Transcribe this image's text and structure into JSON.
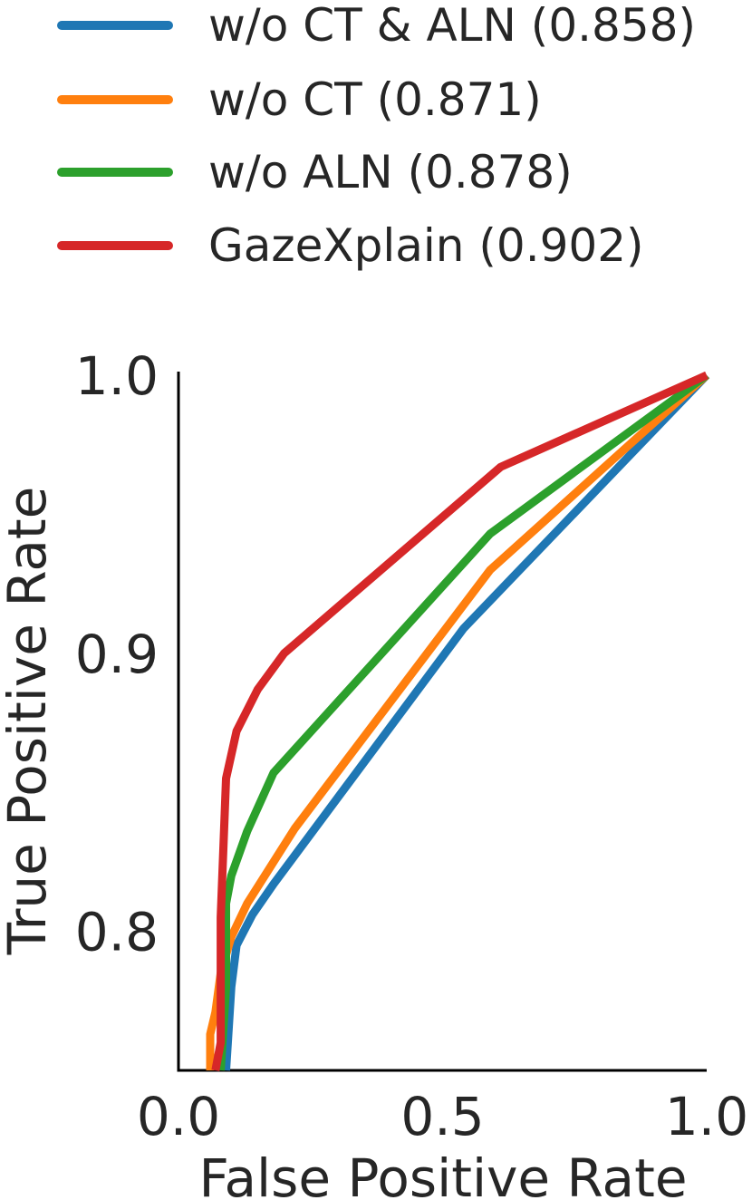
{
  "chart_data": {
    "type": "line",
    "title": "",
    "xlabel": "False Positive Rate",
    "ylabel": "True Positive Rate",
    "xlim": [
      0.0,
      1.0
    ],
    "ylim": [
      0.75,
      1.0
    ],
    "xticks": [
      "0.0",
      "0.5",
      "1.0"
    ],
    "yticks": [
      "0.8",
      "0.9",
      "1.0"
    ],
    "grid": false,
    "legend_position": "top",
    "series": [
      {
        "name": "w/o CT & ALN (0.858)",
        "color": "#1f77b4",
        "x": [
          0.09,
          0.1,
          0.11,
          0.14,
          0.18,
          0.54,
          1.0
        ],
        "y": [
          0.75,
          0.78,
          0.795,
          0.806,
          0.817,
          0.909,
          1.0
        ]
      },
      {
        "name": "w/o CT (0.871)",
        "color": "#ff7f0e",
        "x": [
          0.06,
          0.06,
          0.07,
          0.08,
          0.1,
          0.13,
          0.22,
          0.59,
          1.0
        ],
        "y": [
          0.75,
          0.763,
          0.771,
          0.785,
          0.798,
          0.81,
          0.837,
          0.93,
          1.0
        ]
      },
      {
        "name": "w/o ALN (0.878)",
        "color": "#2ca02c",
        "x": [
          0.08,
          0.09,
          0.09,
          0.1,
          0.13,
          0.18,
          0.59,
          1.0
        ],
        "y": [
          0.75,
          0.78,
          0.81,
          0.82,
          0.836,
          0.857,
          0.943,
          1.0
        ]
      },
      {
        "name": "GazeXplain (0.902)",
        "color": "#d62728",
        "x": [
          0.07,
          0.08,
          0.08,
          0.09,
          0.11,
          0.15,
          0.2,
          0.61,
          1.0
        ],
        "y": [
          0.75,
          0.76,
          0.805,
          0.855,
          0.872,
          0.887,
          0.9,
          0.967,
          1.0
        ]
      }
    ]
  }
}
